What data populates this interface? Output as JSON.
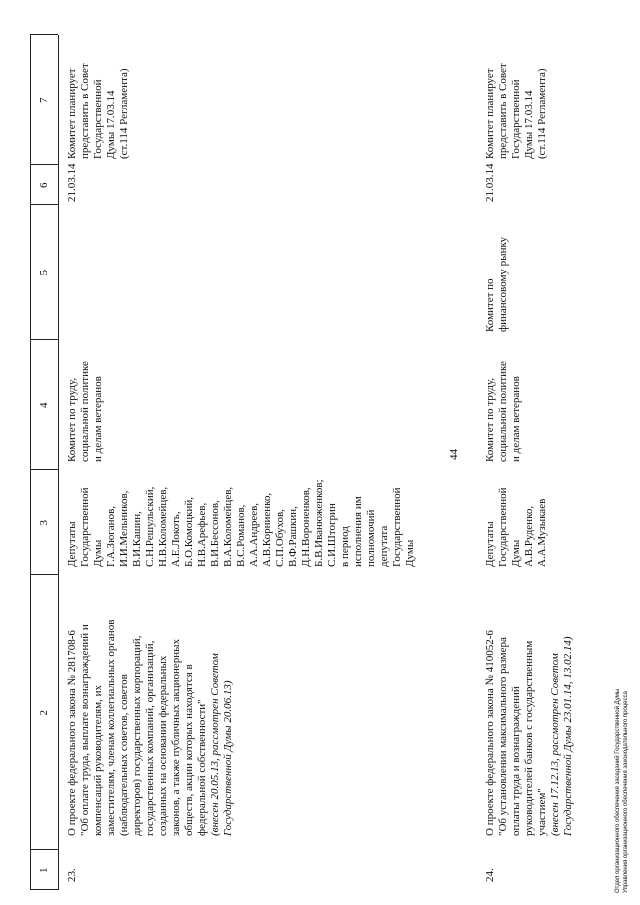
{
  "page_number": "44",
  "table": {
    "header": [
      "1",
      "2",
      "3",
      "4",
      "5",
      "6",
      "7"
    ],
    "rows": [
      {
        "number": "23.",
        "project": [
          "О проекте федерального закона № 281708-6",
          "\"Об оплате труда, выплате вознаграждений и",
          "компенсаций руководителям, их",
          "заместителям, членам коллегиальных органов",
          "(наблюдательных советов, советов",
          "директоров) государственных корпораций,",
          "государственных компаний, организаций,",
          "созданных на основании федеральных",
          "законов, а также публичных акционерных",
          "обществ, акции которых находятся в",
          "федеральной собственности\""
        ],
        "note": [
          "(внесен 20.05.13, рассмотрен Советом",
          "Государственной Думы 20.06.13)"
        ],
        "authors": [
          "Депутаты",
          "Государственной",
          "Думы",
          "Г.А.Зюганов,",
          "И.И.Мельников,",
          "В.И.Кашин,",
          "С.Н.Решульский,",
          "Н.В.Коломейцев,",
          "А.Е.Локоть,",
          "Б.О.Комоцкий,",
          "Н.В.Арефьев,",
          "В.И.Бессонов,",
          "В.А.Коломейцев,",
          "В.С.Романов,",
          "А.А.Андреев,",
          "А.В.Корниенко,",
          "С.П.Обухов,",
          "В.Ф.Рашкин,",
          "Д.Н.Вороненков,",
          "Б.В.Иванюженков;",
          "С.И.Штогрин",
          "в период",
          "исполнения им",
          "полномочий",
          "депутата",
          "Государственной",
          "Думы"
        ],
        "committee": [
          "Комитет по труду,",
          "социальной политике",
          "и делам ветеранов"
        ],
        "date": "21.03.14",
        "status": [
          "Комитет планирует",
          "представить в Совет",
          "Государственной",
          "Думы 17.03.14",
          "(ст.114 Регламента)"
        ]
      },
      {
        "number": "24.",
        "project": [
          "О проекте федерального закона № 410052-6",
          "\"Об установлении максимального размера",
          "оплаты труда и вознаграждений",
          "руководителей банков с государственным",
          "участием\""
        ],
        "note": [
          "(внесен 17.12.13, рассмотрен Советом",
          "Государственной Думы 23.01.14, 13.02.14)"
        ],
        "authors": [
          "Депутаты",
          "Государственной",
          "Думы",
          "А.В.Руденко,",
          "А.А.Музыкаев"
        ],
        "committee": [
          "Комитет по труду,",
          "социальной политике",
          "и делам ветеранов"
        ],
        "co_committee": [
          "Комитет по",
          "финансовому рынку"
        ],
        "date": "21.03.14",
        "status": [
          "Комитет планирует",
          "представить в Совет",
          "Государственной",
          "Думы 17.03.14",
          "(ст.114 Регламента)"
        ]
      }
    ]
  },
  "footer": [
    "Отдел организационного обеспечения заседаний Государственной Думы",
    "Управления организационного обеспечения законодательного процесса"
  ]
}
